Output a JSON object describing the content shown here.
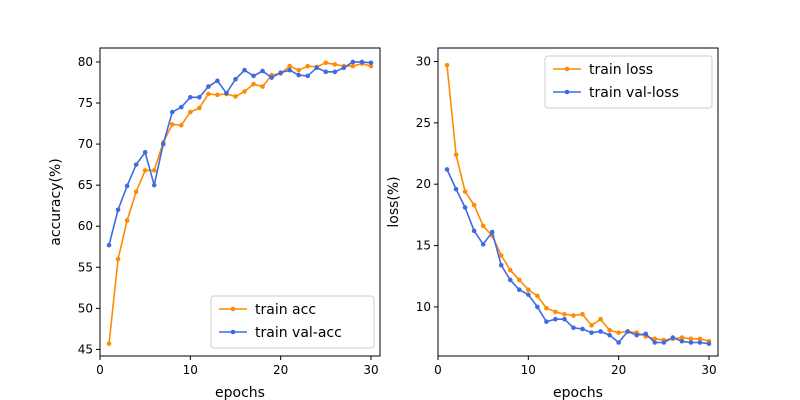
{
  "chart_data": [
    {
      "type": "line",
      "xlabel": "epochs",
      "ylabel": "accuracy(%)",
      "xlim": [
        0,
        31
      ],
      "ylim": [
        44.2,
        81.7
      ],
      "xticks": [
        0,
        10,
        20,
        30
      ],
      "yticks": [
        45,
        50,
        55,
        60,
        65,
        70,
        75,
        80
      ],
      "legend_position": "lower-right",
      "x": [
        1,
        2,
        3,
        4,
        5,
        6,
        7,
        8,
        9,
        10,
        11,
        12,
        13,
        14,
        15,
        16,
        17,
        18,
        19,
        20,
        21,
        22,
        23,
        24,
        25,
        26,
        27,
        28,
        29,
        30
      ],
      "series": [
        {
          "name": "train acc",
          "color": "#ff8c00",
          "values": [
            45.7,
            56.0,
            60.7,
            64.2,
            66.8,
            66.8,
            70.2,
            72.4,
            72.3,
            73.9,
            74.4,
            76.1,
            76.0,
            76.1,
            75.8,
            76.4,
            77.3,
            77.0,
            78.4,
            78.6,
            79.5,
            79.0,
            79.5,
            79.4,
            79.9,
            79.7,
            79.5,
            79.5,
            79.8,
            79.5
          ]
        },
        {
          "name": "train val-acc",
          "color": "#4169e1",
          "values": [
            57.7,
            62.0,
            64.9,
            67.5,
            69.0,
            65.0,
            70.0,
            73.9,
            74.5,
            75.7,
            75.7,
            77.0,
            77.7,
            76.2,
            77.9,
            79.0,
            78.3,
            78.9,
            78.1,
            78.7,
            79.0,
            78.4,
            78.3,
            79.3,
            78.8,
            78.8,
            79.3,
            80.0,
            80.0,
            79.9
          ]
        }
      ]
    },
    {
      "type": "line",
      "xlabel": "epochs",
      "ylabel": "loss(%)",
      "xlim": [
        0,
        31
      ],
      "ylim": [
        6.0,
        31.1
      ],
      "xticks": [
        0,
        10,
        20,
        30
      ],
      "yticks": [
        10,
        15,
        20,
        25,
        30
      ],
      "legend_position": "top-right",
      "x": [
        1,
        2,
        3,
        4,
        5,
        6,
        7,
        8,
        9,
        10,
        11,
        12,
        13,
        14,
        15,
        16,
        17,
        18,
        19,
        20,
        21,
        22,
        23,
        24,
        25,
        26,
        27,
        28,
        29,
        30
      ],
      "series": [
        {
          "name": "train loss",
          "color": "#ff8c00",
          "values": [
            29.7,
            22.4,
            19.4,
            18.3,
            16.6,
            15.8,
            14.2,
            13.0,
            12.2,
            11.4,
            10.9,
            9.9,
            9.6,
            9.4,
            9.3,
            9.4,
            8.5,
            9.0,
            8.1,
            7.9,
            8.0,
            7.9,
            7.6,
            7.4,
            7.3,
            7.4,
            7.5,
            7.4,
            7.4,
            7.2
          ]
        },
        {
          "name": "train val-loss",
          "color": "#4169e1",
          "values": [
            21.2,
            19.6,
            18.1,
            16.2,
            15.1,
            16.1,
            13.4,
            12.2,
            11.4,
            11.0,
            10.0,
            8.8,
            9.0,
            9.0,
            8.3,
            8.2,
            7.9,
            8.0,
            7.7,
            7.1,
            8.0,
            7.7,
            7.8,
            7.1,
            7.1,
            7.5,
            7.2,
            7.1,
            7.1,
            7.0
          ]
        }
      ]
    }
  ]
}
